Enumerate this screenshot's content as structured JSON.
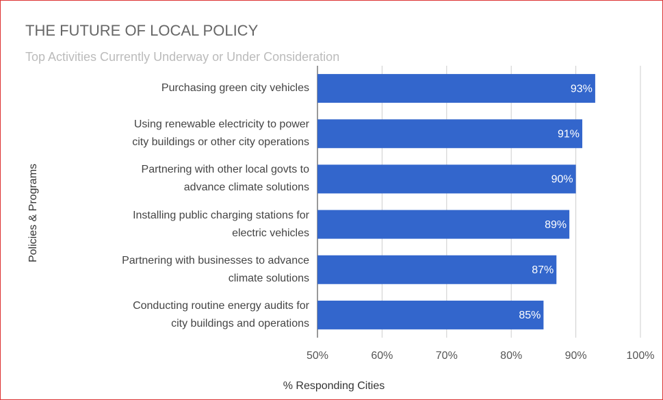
{
  "chart_data": {
    "type": "hbar",
    "title": "THE FUTURE OF LOCAL POLICY",
    "subtitle": "Top Activities Currently Underway or Under Consideration",
    "x_label": "% Responding Cities",
    "y_label": "Policies & Programs",
    "categories": [
      "Purchasing green city vehicles",
      "Using renewable electricity to power\ncity buildings or other city operations",
      "Partnering with other local govts to\nadvance climate solutions",
      "Installing public charging stations for\nelectric vehicles",
      "Partnering with businesses to advance\nclimate solutions",
      "Conducting routine energy audits for\ncity buildings and operations"
    ],
    "values": [
      93,
      91,
      90,
      89,
      87,
      85
    ],
    "value_labels": [
      "93%",
      "91%",
      "90%",
      "89%",
      "87%",
      "85%"
    ],
    "color": "#3366cc",
    "xlim": [
      50,
      100
    ],
    "xticks": [
      {
        "value": 50,
        "label": "50%"
      },
      {
        "value": 60,
        "label": "60%"
      },
      {
        "value": 70,
        "label": "70%"
      },
      {
        "value": 80,
        "label": "80%"
      },
      {
        "value": 90,
        "label": "90%"
      },
      {
        "value": 100,
        "label": "100%"
      }
    ],
    "grid": true
  }
}
